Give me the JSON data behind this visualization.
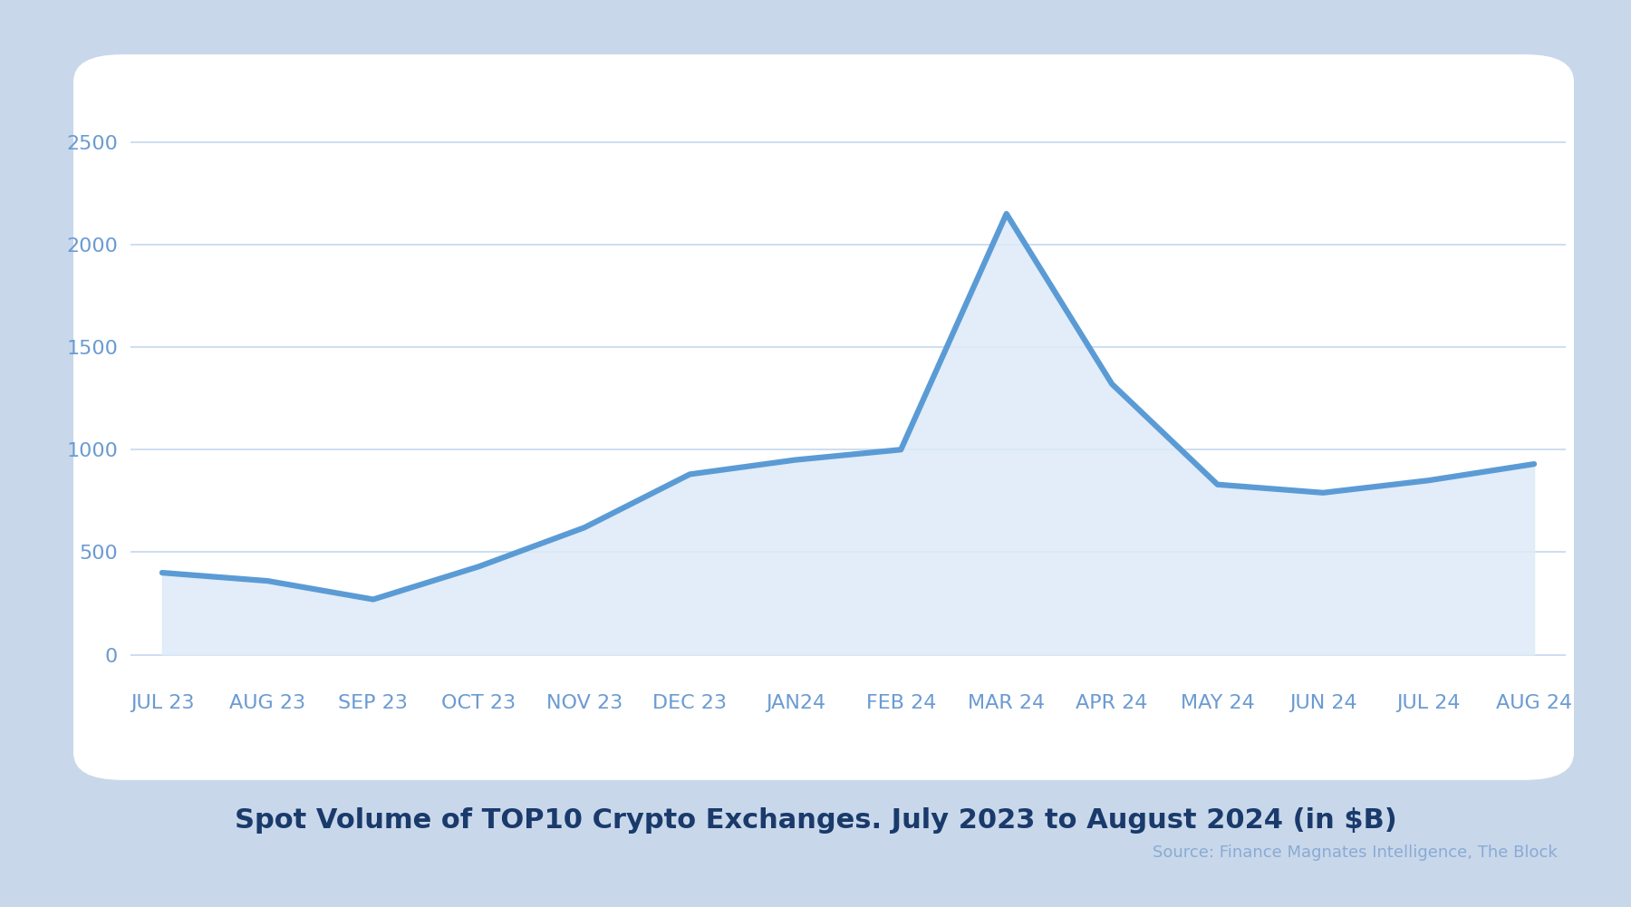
{
  "x_labels": [
    "JUL 23",
    "AUG 23",
    "SEP 23",
    "OCT 23",
    "NOV 23",
    "DEC 23",
    "JAN24",
    "FEB 24",
    "MAR 24",
    "APR 24",
    "MAY 24",
    "JUN 24",
    "JUL 24",
    "AUG 24"
  ],
  "values": [
    400,
    360,
    270,
    430,
    620,
    880,
    950,
    1000,
    2150,
    1320,
    830,
    790,
    850,
    930
  ],
  "line_color": "#5b9bd5",
  "fill_color": "#ddeaf8",
  "title": "Spot Volume of TOP10 Crypto Exchanges. July 2023 to August 2024 (in $B)",
  "title_color": "#1a3a6b",
  "source_text": "Source: Finance Magnates Intelligence, The Block",
  "source_color": "#8aaad4",
  "yticks": [
    0,
    500,
    1000,
    1500,
    2000,
    2500
  ],
  "ylim": [
    -80,
    2750
  ],
  "bg_outer": "#c8d8ea",
  "bg_card": "#ffffff",
  "bg_plot": "#ffffff",
  "grid_color": "#c5d8ee",
  "tick_color": "#6b9bd2",
  "tick_fontsize": 16,
  "title_fontsize": 22,
  "source_fontsize": 13,
  "line_width": 4.5
}
